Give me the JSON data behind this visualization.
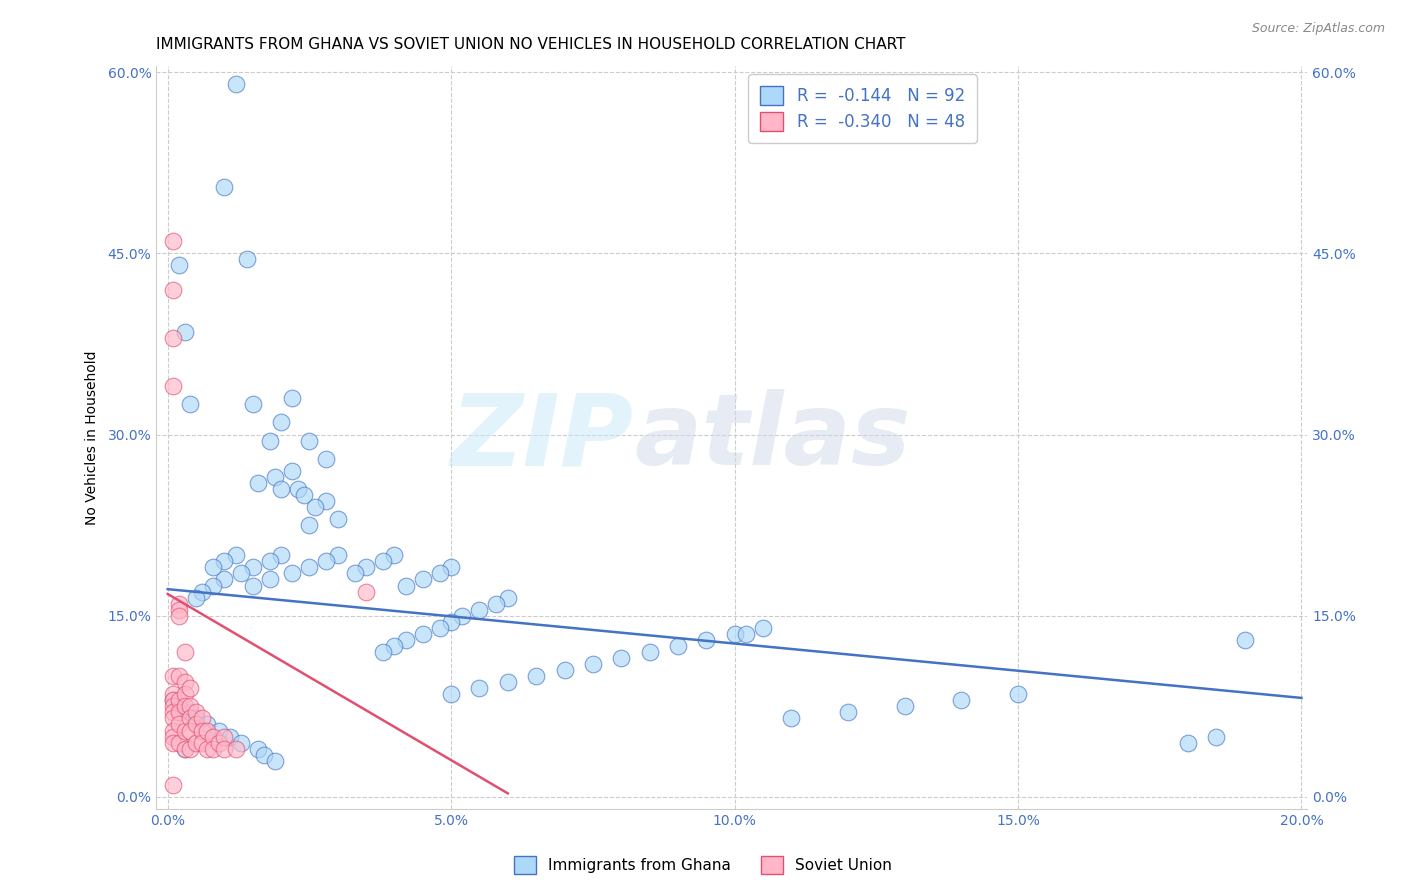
{
  "title": "IMMIGRANTS FROM GHANA VS SOVIET UNION NO VEHICLES IN HOUSEHOLD CORRELATION CHART",
  "source": "Source: ZipAtlas.com",
  "ylabel": "No Vehicles in Household",
  "legend_label1": "Immigrants from Ghana",
  "legend_label2": "Soviet Union",
  "R1": -0.144,
  "N1": 92,
  "R2": -0.34,
  "N2": 48,
  "color1": "#ADD8F7",
  "color2": "#FFB6C8",
  "line_color1": "#4472C4",
  "line_color2": "#E05070",
  "text_color": "#4472C4",
  "xlim_min": -0.002,
  "xlim_max": 0.201,
  "ylim_min": -0.01,
  "ylim_max": 0.605,
  "xticks": [
    0.0,
    0.05,
    0.1,
    0.15,
    0.2
  ],
  "xticklabels": [
    "0.0%",
    "5.0%",
    "10.0%",
    "15.0%",
    "20.0%"
  ],
  "yticks": [
    0.0,
    0.15,
    0.3,
    0.45,
    0.6
  ],
  "yticklabels": [
    "0.0%",
    "15.0%",
    "30.0%",
    "45.0%",
    "60.0%"
  ],
  "reg_line1_x": [
    0.0,
    0.2
  ],
  "reg_line1_y": [
    0.172,
    0.082
  ],
  "reg_line2_x": [
    0.0,
    0.06
  ],
  "reg_line2_y": [
    0.168,
    0.003
  ],
  "ghana_x": [
    0.012,
    0.01,
    0.014,
    0.002,
    0.003,
    0.004,
    0.015,
    0.022,
    0.02,
    0.018,
    0.025,
    0.028,
    0.022,
    0.019,
    0.016,
    0.02,
    0.023,
    0.024,
    0.028,
    0.026,
    0.03,
    0.025,
    0.02,
    0.018,
    0.015,
    0.013,
    0.01,
    0.008,
    0.006,
    0.005,
    0.03,
    0.028,
    0.025,
    0.022,
    0.018,
    0.015,
    0.012,
    0.01,
    0.008,
    0.04,
    0.038,
    0.035,
    0.033,
    0.05,
    0.048,
    0.045,
    0.042,
    0.06,
    0.058,
    0.055,
    0.052,
    0.05,
    0.048,
    0.045,
    0.042,
    0.04,
    0.038,
    0.1,
    0.095,
    0.09,
    0.085,
    0.08,
    0.075,
    0.07,
    0.065,
    0.06,
    0.055,
    0.05,
    0.15,
    0.14,
    0.13,
    0.12,
    0.11,
    0.105,
    0.102,
    0.19,
    0.185,
    0.18,
    0.003,
    0.001,
    0.002,
    0.004,
    0.005,
    0.007,
    0.009,
    0.011,
    0.013,
    0.016,
    0.017,
    0.019
  ],
  "ghana_y": [
    0.59,
    0.505,
    0.445,
    0.44,
    0.385,
    0.325,
    0.325,
    0.33,
    0.31,
    0.295,
    0.295,
    0.28,
    0.27,
    0.265,
    0.26,
    0.255,
    0.255,
    0.25,
    0.245,
    0.24,
    0.23,
    0.225,
    0.2,
    0.195,
    0.19,
    0.185,
    0.18,
    0.175,
    0.17,
    0.165,
    0.2,
    0.195,
    0.19,
    0.185,
    0.18,
    0.175,
    0.2,
    0.195,
    0.19,
    0.2,
    0.195,
    0.19,
    0.185,
    0.19,
    0.185,
    0.18,
    0.175,
    0.165,
    0.16,
    0.155,
    0.15,
    0.145,
    0.14,
    0.135,
    0.13,
    0.125,
    0.12,
    0.135,
    0.13,
    0.125,
    0.12,
    0.115,
    0.11,
    0.105,
    0.1,
    0.095,
    0.09,
    0.085,
    0.085,
    0.08,
    0.075,
    0.07,
    0.065,
    0.14,
    0.135,
    0.13,
    0.05,
    0.045,
    0.04,
    0.08,
    0.075,
    0.07,
    0.065,
    0.06,
    0.055,
    0.05,
    0.045,
    0.04,
    0.035,
    0.03
  ],
  "soviet_x": [
    0.001,
    0.001,
    0.001,
    0.001,
    0.001,
    0.001,
    0.001,
    0.001,
    0.001,
    0.001,
    0.001,
    0.001,
    0.001,
    0.002,
    0.002,
    0.002,
    0.002,
    0.002,
    0.002,
    0.002,
    0.002,
    0.003,
    0.003,
    0.003,
    0.003,
    0.003,
    0.003,
    0.004,
    0.004,
    0.004,
    0.004,
    0.004,
    0.005,
    0.005,
    0.005,
    0.006,
    0.006,
    0.006,
    0.007,
    0.007,
    0.008,
    0.008,
    0.009,
    0.01,
    0.01,
    0.012,
    0.035,
    0.001
  ],
  "soviet_y": [
    0.46,
    0.42,
    0.38,
    0.34,
    0.1,
    0.085,
    0.08,
    0.075,
    0.07,
    0.065,
    0.055,
    0.05,
    0.045,
    0.16,
    0.155,
    0.15,
    0.1,
    0.08,
    0.07,
    0.06,
    0.045,
    0.12,
    0.095,
    0.085,
    0.075,
    0.055,
    0.04,
    0.09,
    0.075,
    0.065,
    0.055,
    0.04,
    0.07,
    0.06,
    0.045,
    0.065,
    0.055,
    0.045,
    0.055,
    0.04,
    0.05,
    0.04,
    0.045,
    0.05,
    0.04,
    0.04,
    0.17,
    0.01
  ],
  "watermark_zip": "ZIP",
  "watermark_atlas": "atlas",
  "title_fontsize": 11,
  "axis_fontsize": 10,
  "tick_fontsize": 10,
  "marker_size": 12,
  "alpha": 0.65
}
